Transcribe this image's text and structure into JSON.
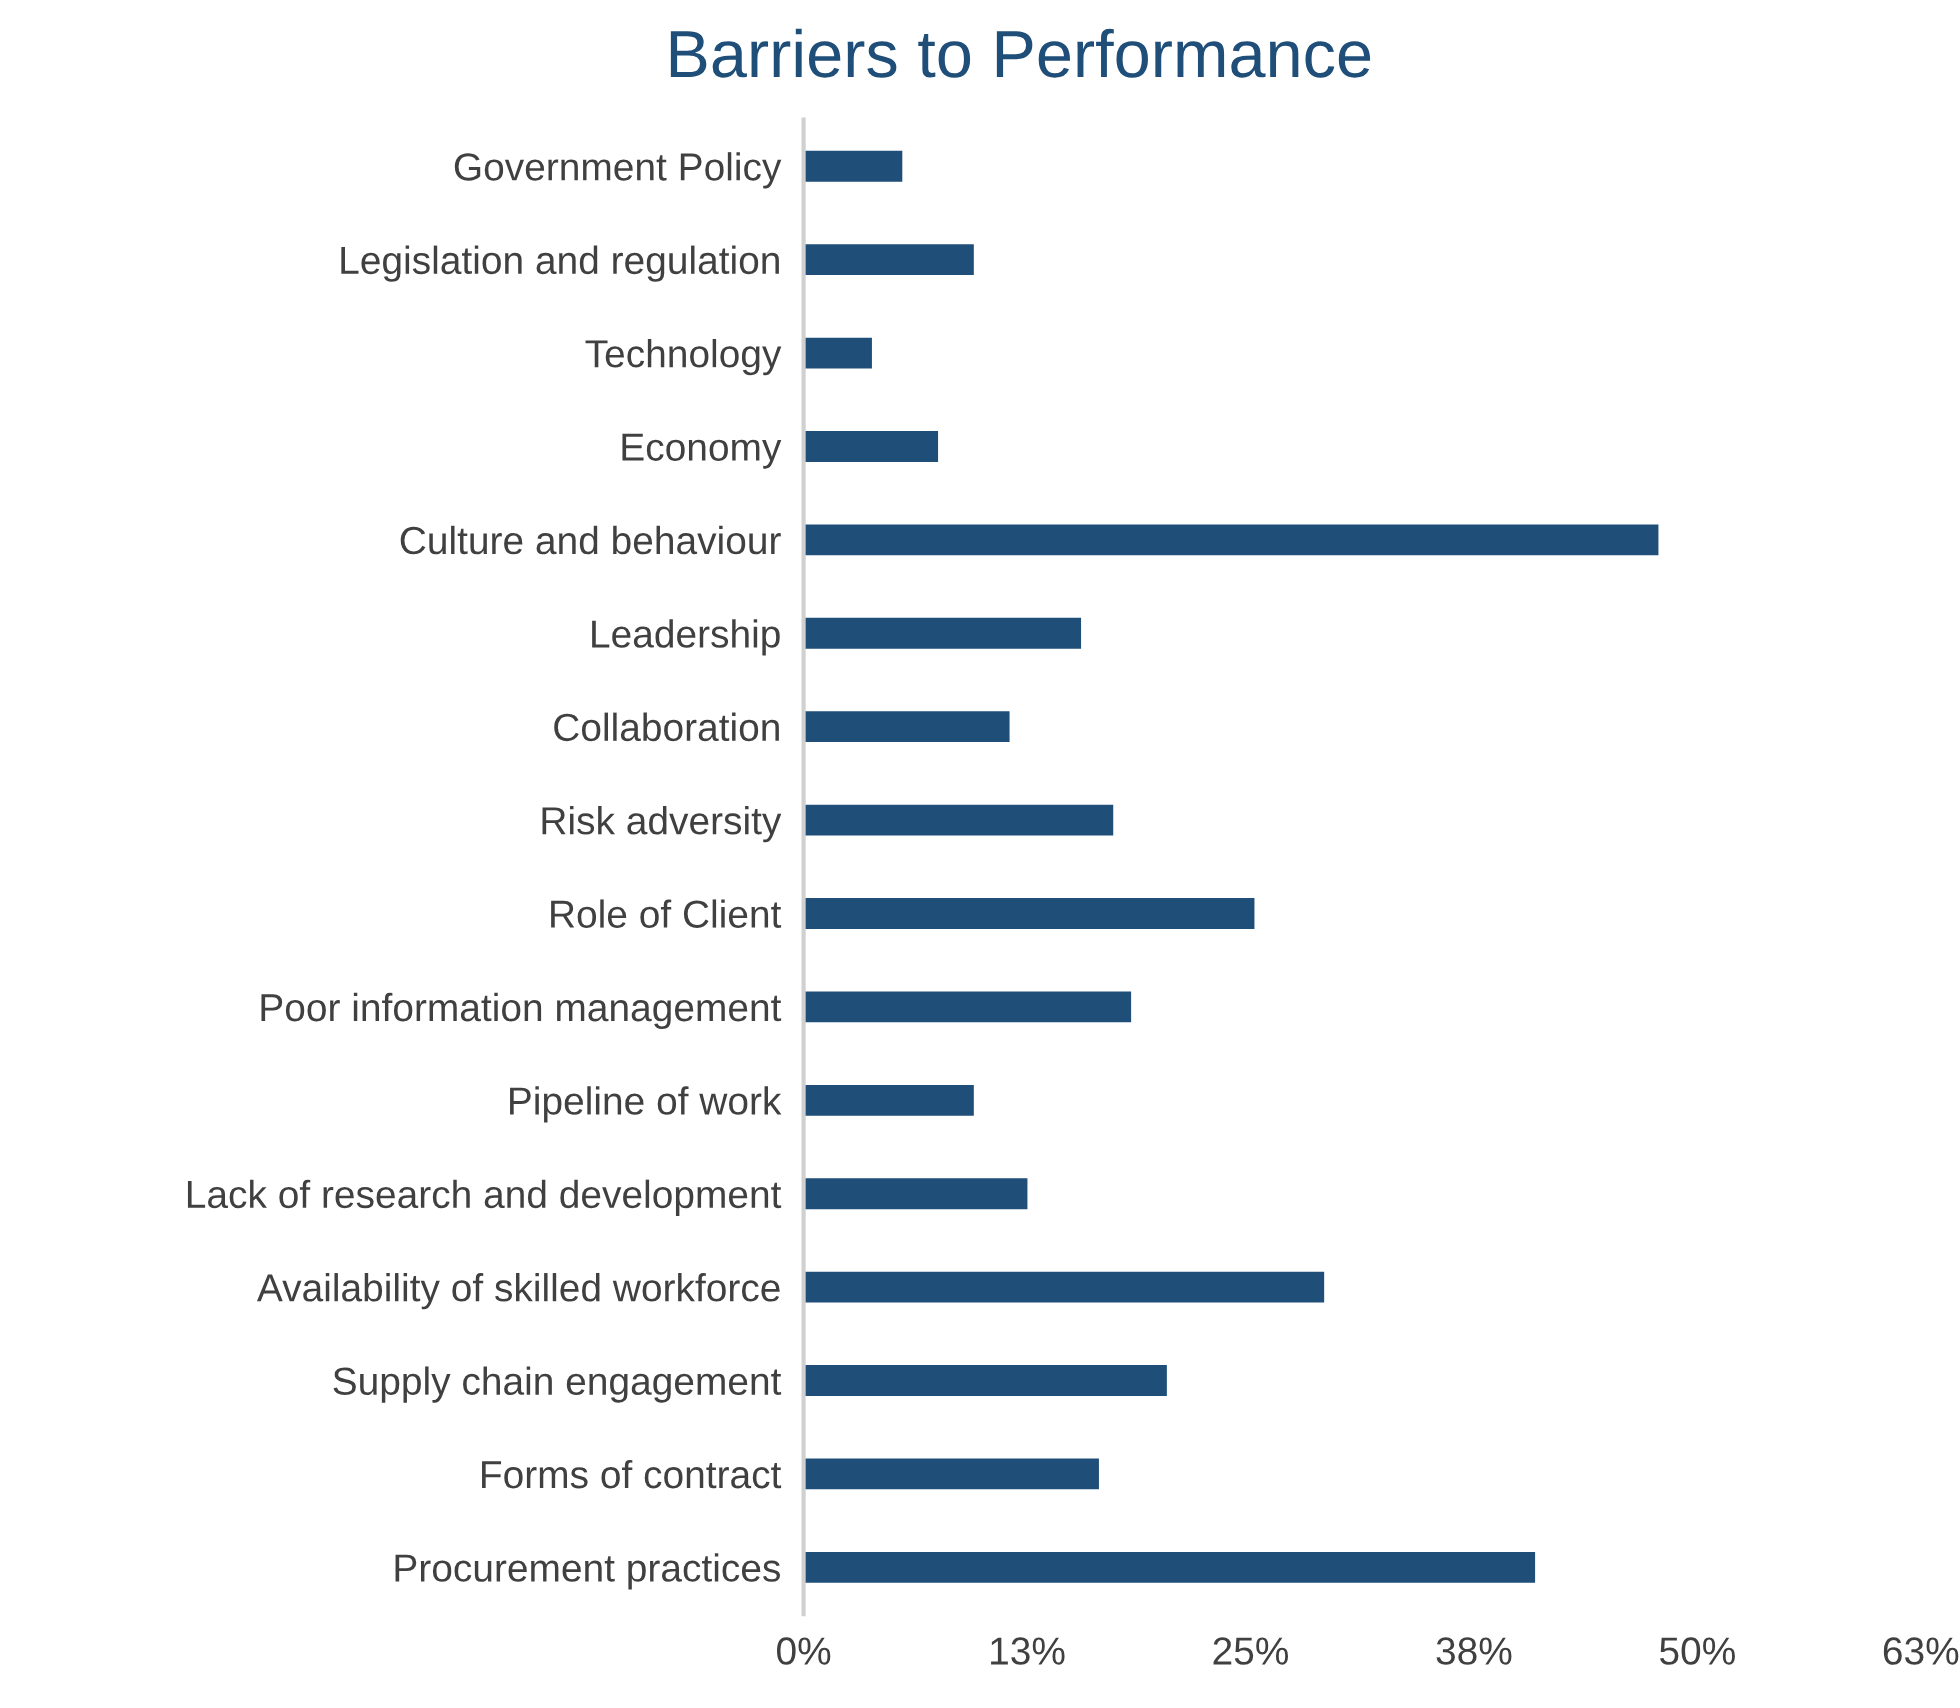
{
  "chart_data": {
    "type": "bar",
    "orientation": "horizontal",
    "title": "Barriers to Performance",
    "categories": [
      "Government Policy",
      "Legislation and regulation",
      "Technology",
      "Economy",
      "Culture and behaviour",
      "Leadership",
      "Collaboration",
      "Risk adversity",
      "Role of Client",
      "Poor information management",
      "Pipeline of work",
      "Lack of research and development",
      "Availability of skilled workforce",
      "Supply chain engagement",
      "Forms of contract",
      "Procurement practices"
    ],
    "values": [
      5.6,
      9.6,
      3.9,
      7.6,
      47.9,
      15.6,
      11.6,
      17.4,
      25.3,
      18.4,
      9.6,
      12.6,
      29.2,
      20.4,
      16.6,
      41.0
    ],
    "color": "#1f4e79",
    "xlim": [
      0,
      62.5
    ],
    "xticks": [
      {
        "value": 0,
        "label": "0%"
      },
      {
        "value": 12.5,
        "label": "13%"
      },
      {
        "value": 25,
        "label": "25%"
      },
      {
        "value": 37.5,
        "label": "38%"
      },
      {
        "value": 50,
        "label": "50%"
      },
      {
        "value": 62.5,
        "label": "63%"
      }
    ],
    "grid": false,
    "legend": false
  }
}
